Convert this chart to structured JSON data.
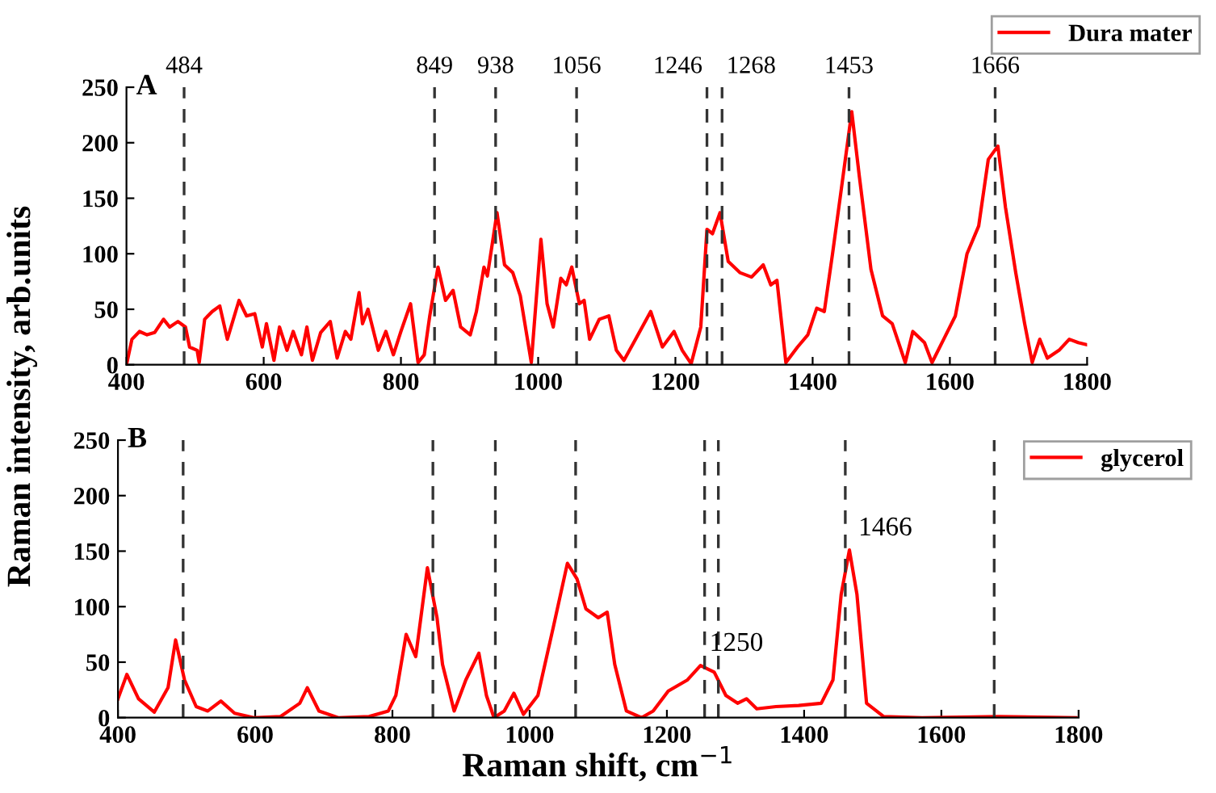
{
  "chart_data": [
    {
      "type": "line",
      "title": "A",
      "ylabel": "Raman intensity, arb.units",
      "legend": "top right",
      "grid": false,
      "marker": "none",
      "line_style": "solid",
      "xlim": [
        400,
        1800
      ],
      "xticks": [
        400,
        600,
        800,
        1000,
        1200,
        1400,
        1600,
        1800
      ],
      "ylim": [
        0,
        250
      ],
      "yticks": [
        0,
        50,
        100,
        150,
        200,
        250
      ],
      "series": [
        {
          "name": "Dura mater",
          "color": "#ff0000",
          "x": [
            400,
            408,
            419,
            430,
            441,
            454,
            463,
            475,
            486,
            492,
            503,
            506,
            514,
            525,
            536,
            547,
            564,
            575,
            587,
            598,
            604,
            615,
            623,
            634,
            643,
            655,
            663,
            671,
            683,
            697,
            707,
            719,
            727,
            739,
            744,
            752,
            767,
            778,
            789,
            800,
            814,
            825,
            834,
            842,
            854,
            865,
            876,
            887,
            901,
            910,
            921,
            926,
            940,
            951,
            963,
            974,
            990,
            1004,
            1013,
            1022,
            1033,
            1041,
            1049,
            1060,
            1067,
            1075,
            1089,
            1103,
            1114,
            1125,
            1142,
            1164,
            1181,
            1198,
            1210,
            1223,
            1237,
            1246,
            1254,
            1265,
            1277,
            1294,
            1311,
            1328,
            1339,
            1348,
            1361,
            1378,
            1393,
            1406,
            1417,
            1429,
            1440,
            1457,
            1468,
            1485,
            1502,
            1516,
            1535,
            1546,
            1563,
            1574,
            1591,
            1608,
            1625,
            1642,
            1656,
            1670,
            1681,
            1696,
            1709,
            1720,
            1731,
            1742,
            1759,
            1774,
            1787,
            1800
          ],
          "values": [
            0,
            23,
            30,
            27,
            29,
            41,
            34,
            39,
            34,
            16,
            13,
            2,
            41,
            48,
            53,
            23,
            58,
            44,
            46,
            16,
            37,
            4,
            34,
            13,
            30,
            9,
            34,
            4,
            29,
            39,
            6,
            30,
            23,
            65,
            37,
            50,
            13,
            30,
            9,
            30,
            55,
            2,
            9,
            44,
            88,
            58,
            67,
            34,
            27,
            48,
            88,
            80,
            137,
            90,
            83,
            62,
            2,
            113,
            55,
            34,
            78,
            72,
            88,
            55,
            58,
            23,
            41,
            44,
            13,
            4,
            23,
            48,
            16,
            30,
            13,
            1,
            34,
            122,
            118,
            137,
            93,
            83,
            79,
            90,
            72,
            76,
            2,
            16,
            27,
            51,
            48,
            100,
            150,
            228,
            170,
            86,
            44,
            37,
            2,
            30,
            20,
            2,
            23,
            44,
            100,
            125,
            185,
            197,
            142,
            83,
            37,
            2,
            23,
            6,
            13,
            23,
            20,
            18
          ]
        }
      ],
      "ref_lines": [
        {
          "axis": "x",
          "value": 484,
          "label": "484",
          "color": "#333333",
          "line_style": "dashed"
        },
        {
          "axis": "x",
          "value": 849,
          "label": "849",
          "color": "#333333",
          "line_style": "dashed"
        },
        {
          "axis": "x",
          "value": 938,
          "label": "938",
          "color": "#333333",
          "line_style": "dashed"
        },
        {
          "axis": "x",
          "value": 1056,
          "label": "1056",
          "color": "#333333",
          "line_style": "dashed"
        },
        {
          "axis": "x",
          "value": 1246,
          "label": "1246",
          "color": "#333333",
          "line_style": "dashed"
        },
        {
          "axis": "x",
          "value": 1268,
          "label": "1268",
          "color": "#333333",
          "line_style": "dashed"
        },
        {
          "axis": "x",
          "value": 1453,
          "label": "1453",
          "color": "#333333",
          "line_style": "dashed"
        },
        {
          "axis": "x",
          "value": 1666,
          "label": "1666",
          "color": "#333333",
          "line_style": "dashed"
        }
      ]
    },
    {
      "type": "line",
      "title": "B",
      "xlabel": "Raman shift, cm$^{−1}$",
      "legend": "top right",
      "grid": false,
      "marker": "none",
      "line_style": "solid",
      "xlim": [
        400,
        1800
      ],
      "xticks": [
        400,
        600,
        800,
        1000,
        1200,
        1400,
        1600,
        1800
      ],
      "ylim": [
        0,
        250
      ],
      "yticks": [
        0,
        50,
        100,
        150,
        200,
        250
      ],
      "series": [
        {
          "name": "glycerol",
          "color": "#ff0000",
          "x": [
            400,
            413,
            430,
            453,
            473,
            484,
            497,
            514,
            531,
            550,
            570,
            598,
            637,
            665,
            676,
            693,
            721,
            766,
            794,
            805,
            820,
            834,
            851,
            865,
            873,
            890,
            907,
            926,
            937,
            948,
            963,
            977,
            991,
            1012,
            1035,
            1055,
            1069,
            1082,
            1100,
            1113,
            1124,
            1141,
            1163,
            1180,
            1202,
            1230,
            1249,
            1269,
            1286,
            1303,
            1316,
            1331,
            1359,
            1392,
            1425,
            1442,
            1454,
            1466,
            1477,
            1491,
            1516,
            1572,
            1684,
            1796
          ],
          "values": [
            17,
            39,
            17,
            5,
            27,
            70,
            34,
            10,
            6,
            15,
            4,
            0,
            1,
            13,
            27,
            6,
            0,
            1,
            6,
            20,
            75,
            55,
            135,
            90,
            48,
            6,
            34,
            58,
            20,
            0,
            6,
            22,
            3,
            20,
            83,
            139,
            125,
            98,
            90,
            95,
            48,
            6,
            0,
            6,
            24,
            34,
            47,
            41,
            20,
            13,
            17,
            8,
            10,
            11,
            13,
            34,
            111,
            151,
            111,
            13,
            1,
            0,
            1,
            0
          ]
        }
      ],
      "annotations": [
        {
          "text": "1466",
          "x": 1466,
          "y": 151
        },
        {
          "text": "1250",
          "x": 1249,
          "y": 47
        }
      ],
      "ref_lines": [
        {
          "axis": "x",
          "value": 495,
          "color": "#333333",
          "line_style": "dashed"
        },
        {
          "axis": "x",
          "value": 859,
          "color": "#333333",
          "line_style": "dashed"
        },
        {
          "axis": "x",
          "value": 950,
          "color": "#333333",
          "line_style": "dashed"
        },
        {
          "axis": "x",
          "value": 1067,
          "color": "#333333",
          "line_style": "dashed"
        },
        {
          "axis": "x",
          "value": 1255,
          "color": "#333333",
          "line_style": "dashed"
        },
        {
          "axis": "x",
          "value": 1275,
          "color": "#333333",
          "line_style": "dashed"
        },
        {
          "axis": "x",
          "value": 1460,
          "color": "#333333",
          "line_style": "dashed"
        },
        {
          "axis": "x",
          "value": 1677,
          "color": "#333333",
          "line_style": "dashed"
        }
      ]
    }
  ]
}
